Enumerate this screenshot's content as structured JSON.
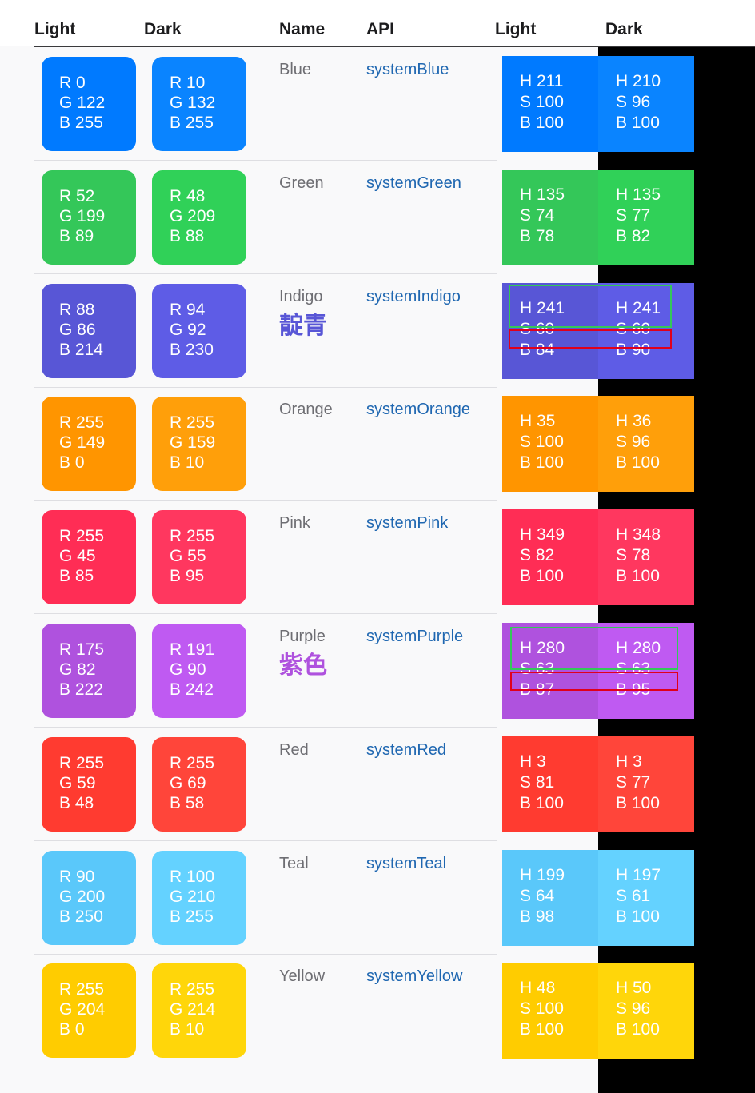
{
  "headers": {
    "light": "Light",
    "dark": "Dark",
    "name": "Name",
    "api": "API",
    "light2": "Light",
    "dark2": "Dark"
  },
  "rows": [
    {
      "name": "Blue",
      "zh": "",
      "api": "systemBlue",
      "light_color": "#007aff",
      "dark_color": "#0a84ff",
      "zh_color": "",
      "light_rgb": [
        "R 0",
        "G 122",
        "B 255"
      ],
      "dark_rgb": [
        "R 10",
        "G 132",
        "B 255"
      ],
      "light_hsb": [
        "H 211",
        "S 100",
        "B 100"
      ],
      "dark_hsb": [
        "H 210",
        "S 96",
        "B 100"
      ]
    },
    {
      "name": "Green",
      "zh": "",
      "api": "systemGreen",
      "light_color": "#34c759",
      "dark_color": "#30d158",
      "zh_color": "",
      "light_rgb": [
        "R 52",
        "G 199",
        "B 89"
      ],
      "dark_rgb": [
        "R 48",
        "G 209",
        "B 88"
      ],
      "light_hsb": [
        "H 135",
        "S 74",
        "B 78"
      ],
      "dark_hsb": [
        "H 135",
        "S 77",
        "B 82"
      ]
    },
    {
      "name": "Indigo",
      "zh": "靛青",
      "api": "systemIndigo",
      "light_color": "#5856d6",
      "dark_color": "#5e5ce6",
      "zh_color": "#5856d6",
      "light_rgb": [
        "R 88",
        "G 86",
        "B 214"
      ],
      "dark_rgb": [
        "R 94",
        "G 92",
        "B 230"
      ],
      "light_hsb": [
        "H 241",
        "S 60",
        "B 84"
      ],
      "dark_hsb": [
        "H 241",
        "S 60",
        "B 90"
      ]
    },
    {
      "name": "Orange",
      "zh": "",
      "api": "systemOrange",
      "light_color": "#ff9500",
      "dark_color": "#ff9f0a",
      "zh_color": "",
      "light_rgb": [
        "R 255",
        "G 149",
        "B 0"
      ],
      "dark_rgb": [
        "R 255",
        "G 159",
        "B 10"
      ],
      "light_hsb": [
        "H 35",
        "S 100",
        "B 100"
      ],
      "dark_hsb": [
        "H 36",
        "S 96",
        "B 100"
      ]
    },
    {
      "name": "Pink",
      "zh": "",
      "api": "systemPink",
      "light_color": "#ff2d55",
      "dark_color": "#ff375f",
      "zh_color": "",
      "light_rgb": [
        "R 255",
        "G 45",
        "B 85"
      ],
      "dark_rgb": [
        "R 255",
        "G 55",
        "B 95"
      ],
      "light_hsb": [
        "H 349",
        "S 82",
        "B 100"
      ],
      "dark_hsb": [
        "H 348",
        "S 78",
        "B 100"
      ]
    },
    {
      "name": "Purple",
      "zh": "紫色",
      "api": "systemPurple",
      "light_color": "#af52de",
      "dark_color": "#bf5af2",
      "zh_color": "#af52de",
      "light_rgb": [
        "R 175",
        "G 82",
        "B 222"
      ],
      "dark_rgb": [
        "R 191",
        "G 90",
        "B 242"
      ],
      "light_hsb": [
        "H 280",
        "S 63",
        "B 87"
      ],
      "dark_hsb": [
        "H 280",
        "S 63",
        "B 95"
      ]
    },
    {
      "name": "Red",
      "zh": "",
      "api": "systemRed",
      "light_color": "#ff3b30",
      "dark_color": "#ff453a",
      "zh_color": "",
      "light_rgb": [
        "R 255",
        "G 59",
        "B 48"
      ],
      "dark_rgb": [
        "R 255",
        "G 69",
        "B 58"
      ],
      "light_hsb": [
        "H 3",
        "S 81",
        "B 100"
      ],
      "dark_hsb": [
        "H 3",
        "S 77",
        "B 100"
      ]
    },
    {
      "name": "Teal",
      "zh": "",
      "api": "systemTeal",
      "light_color": "#5ac8fa",
      "dark_color": "#64d2ff",
      "zh_color": "",
      "light_rgb": [
        "R 90",
        "G 200",
        "B 250"
      ],
      "dark_rgb": [
        "R 100",
        "G 210",
        "B 255"
      ],
      "light_hsb": [
        "H 199",
        "S 64",
        "B 98"
      ],
      "dark_hsb": [
        "H 197",
        "S 61",
        "B 100"
      ]
    },
    {
      "name": "Yellow",
      "zh": "",
      "api": "systemYellow",
      "light_color": "#ffcc00",
      "dark_color": "#ffd60a",
      "zh_color": "",
      "light_rgb": [
        "R 255",
        "G 204",
        "B 0"
      ],
      "dark_rgb": [
        "R 255",
        "G 214",
        "B 10"
      ],
      "light_hsb": [
        "H 48",
        "S 100",
        "B 100"
      ],
      "dark_hsb": [
        "H 50",
        "S 96",
        "B 100"
      ]
    }
  ],
  "highlight_colors": {
    "green": "#34c759",
    "red": "#e0001b"
  }
}
